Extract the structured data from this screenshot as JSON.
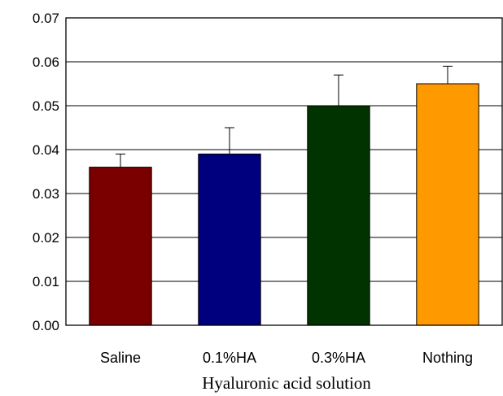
{
  "chart_data": {
    "type": "bar",
    "title": "",
    "xlabel": "Hyaluronic acid solution",
    "ylabel": "",
    "categories": [
      "Saline",
      "0.1%HA",
      "0.3%HA",
      "Nothing"
    ],
    "series": [
      {
        "values": [
          0.036,
          0.039,
          0.05,
          0.055
        ],
        "error_upper": [
          0.003,
          0.006,
          0.007,
          0.004
        ]
      }
    ],
    "bar_colors": [
      "#7a0000",
      "#00007e",
      "#003300",
      "#ff9900"
    ],
    "ylim": [
      0,
      0.07
    ],
    "yticks": [
      "0.00",
      "0.01",
      "0.02",
      "0.03",
      "0.04",
      "0.05",
      "0.06",
      "0.07"
    ],
    "grid": "horizontal",
    "legend": "none"
  }
}
